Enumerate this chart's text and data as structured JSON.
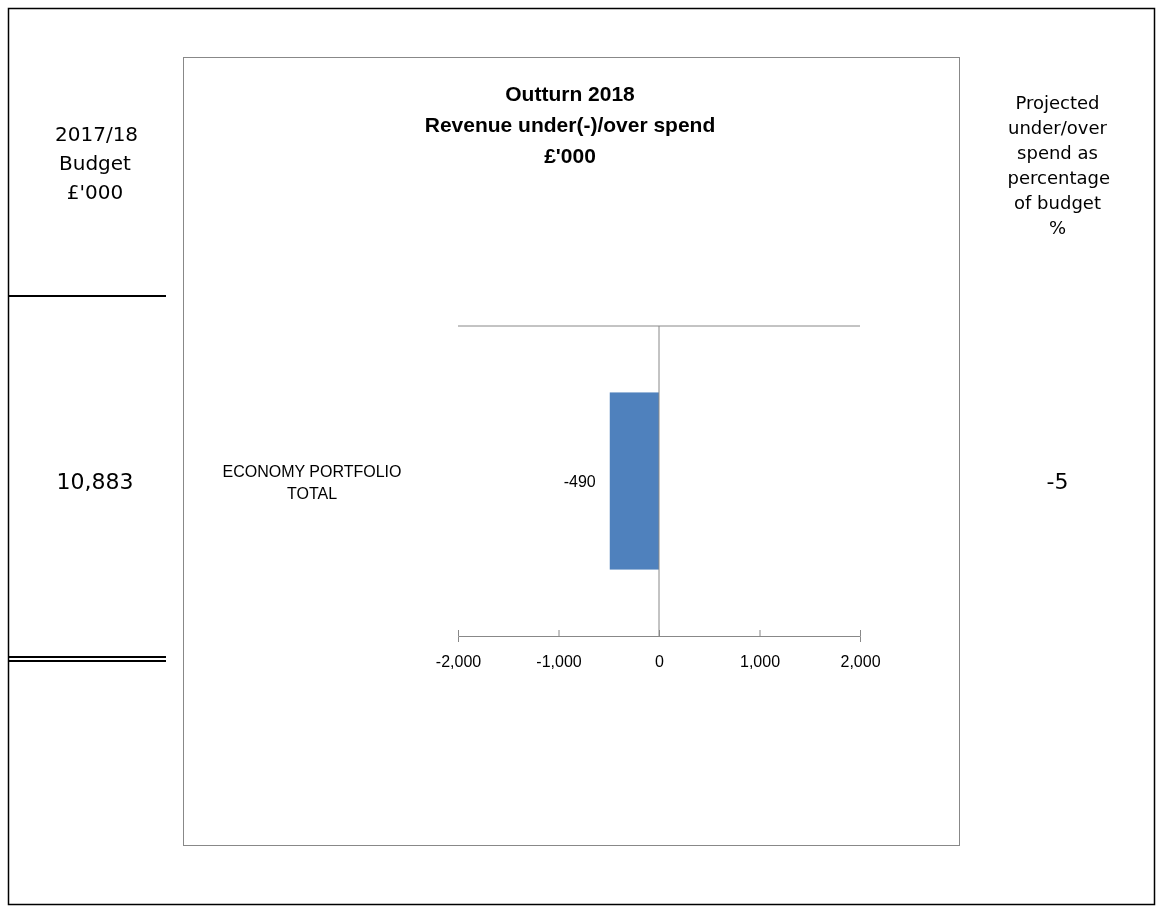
{
  "chart_data": {
    "type": "bar",
    "orientation": "horizontal",
    "title": "Outturn 2018\nRevenue under(-)/over spend\n£'000",
    "categories": [
      "ECONOMY PORTFOLIO TOTAL"
    ],
    "values": [
      -490
    ],
    "color": "#4f81bd",
    "data_labels": true,
    "xlim": [
      -2000,
      2000
    ],
    "xticks": [
      {
        "value": -2000,
        "label": "-2,000"
      },
      {
        "value": -1000,
        "label": "-1,000"
      },
      0,
      {
        "value": 1000,
        "label": "1,000"
      },
      {
        "value": 2000,
        "label": "2,000"
      }
    ],
    "annotations": [
      "2017/18 Budget £'000",
      "10,883",
      "Projected under/over spend as percentage of budget %",
      "-5"
    ]
  }
}
